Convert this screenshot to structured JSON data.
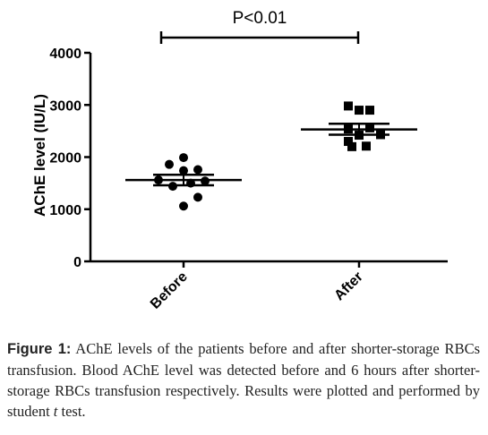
{
  "chart_data": {
    "type": "scatter",
    "title": "",
    "xlabel": "",
    "ylabel": "AChE level (IU/L)",
    "categories": [
      "Before",
      "After"
    ],
    "ylim": [
      0,
      4000
    ],
    "yticks": [
      0,
      1000,
      2000,
      3000,
      4000
    ],
    "series": [
      {
        "category": "Before",
        "marker": "circle",
        "values": [
          1990,
          1860,
          1740,
          1760,
          1560,
          1540,
          1440,
          1500,
          1230,
          1060
        ],
        "mean": 1560,
        "sem": [
          1460,
          1660
        ]
      },
      {
        "category": "After",
        "marker": "square",
        "values": [
          2980,
          2900,
          2900,
          2540,
          2560,
          2300,
          2420,
          2430,
          2210,
          2200
        ],
        "mean": 2530,
        "sem": [
          2430,
          2640
        ]
      }
    ],
    "annotation": "P<0.01",
    "grid": false,
    "colors": {
      "marker": "#000000",
      "axis": "#000000"
    }
  },
  "caption": {
    "label": "Figure 1:",
    "text_before_italic": " AChE levels of the patients before and after shorter-storage RBCs transfusion. Blood AChE level was detected before and 6 hours after shorter-storage RBCs transfusion respectively. Results were plotted and performed by student ",
    "italic": "t",
    "text_after_italic": " test."
  }
}
